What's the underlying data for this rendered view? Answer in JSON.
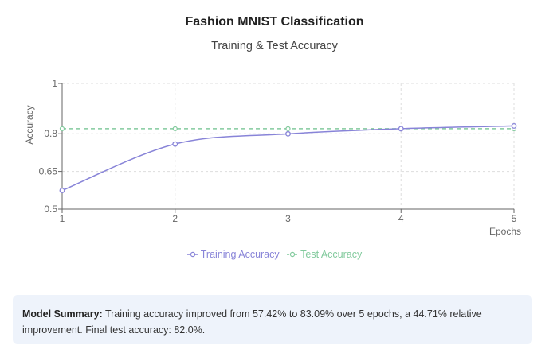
{
  "title": "Fashion MNIST Classification",
  "subtitle": "Training & Test Accuracy",
  "summary": {
    "label": "Model Summary:",
    "text": " Training accuracy improved from 57.42% to 83.09% over 5 epochs, a 44.71% relative improvement. Final test accuracy: 82.0%."
  },
  "chart_data": {
    "type": "line",
    "xlabel": "Epochs",
    "ylabel": "Accuracy",
    "x": [
      1,
      2,
      3,
      4,
      5
    ],
    "xlim": [
      1,
      5
    ],
    "ylim": [
      0.5,
      1
    ],
    "yticks": [
      0.5,
      0.65,
      0.8,
      1
    ],
    "grid": true,
    "legend_position": "bottom",
    "series": [
      {
        "name": "Training Accuracy",
        "values": [
          0.5742,
          0.759,
          0.7995,
          0.82,
          0.8309
        ],
        "color": "#8884d8",
        "style": "solid-curve"
      },
      {
        "name": "Test Accuracy",
        "values": [
          0.82,
          0.82,
          0.82,
          0.82,
          0.82
        ],
        "color": "#82ca9d",
        "style": "dashed"
      }
    ]
  }
}
